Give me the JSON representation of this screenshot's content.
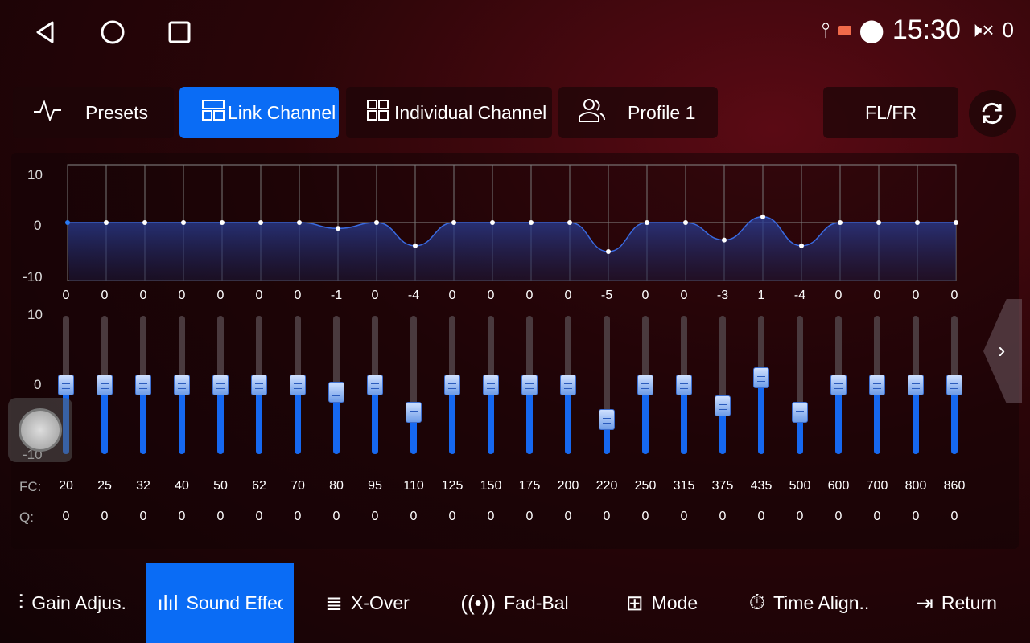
{
  "nav": {
    "back_icon": "triangle-back",
    "home_icon": "circle-home",
    "recents_icon": "square-recents"
  },
  "status": {
    "time": "15:30",
    "volume": "0",
    "icons": [
      "usb-icon",
      "cast-icon",
      "location-icon",
      "volume-mute-icon"
    ],
    "cast_color": "#f06a4a"
  },
  "tabs": [
    {
      "label": "Presets",
      "icon": "pulse-icon"
    },
    {
      "label": "Link Channel",
      "icon": "link-channel-icon",
      "active": true
    },
    {
      "label": "Individual Channel",
      "icon": "grid-icon"
    },
    {
      "label": "Profile 1",
      "icon": "users-icon"
    }
  ],
  "channel": "FL/FR",
  "graph": {
    "y_labels": [
      "10",
      "0",
      "-10"
    ]
  },
  "slider_labels": [
    "10",
    "0",
    "-10"
  ],
  "bands": {
    "gains": [
      0,
      0,
      0,
      0,
      0,
      0,
      0,
      -1,
      0,
      -4,
      0,
      0,
      0,
      0,
      -5,
      0,
      0,
      -3,
      1,
      -4,
      0,
      0,
      0,
      0
    ],
    "fc": [
      "20",
      "25",
      "32",
      "40",
      "50",
      "62",
      "70",
      "80",
      "95",
      "110",
      "125",
      "150",
      "175",
      "200",
      "220",
      "250",
      "315",
      "375",
      "435",
      "500",
      "600",
      "700",
      "800",
      "860"
    ],
    "q": [
      "0",
      "0",
      "0",
      "0",
      "0",
      "0",
      "0",
      "0",
      "0",
      "0",
      "0",
      "0",
      "0",
      "0",
      "0",
      "0",
      "0",
      "0",
      "0",
      "0",
      "0",
      "0",
      "0",
      "0"
    ]
  },
  "fc_label": "FC:",
  "q_label": "Q:",
  "bottom": [
    {
      "label": "Gain Adjus..",
      "icon": "sliders-icon"
    },
    {
      "label": "Sound Effec",
      "icon": "waveform-icon",
      "active": true
    },
    {
      "label": "X-Over",
      "icon": "equalizer-bars-icon"
    },
    {
      "label": "Fad-Bal",
      "icon": "speaker-wave-icon"
    },
    {
      "label": "Mode",
      "icon": "mode-icon"
    },
    {
      "label": "Time Align..",
      "icon": "stopwatch-icon"
    },
    {
      "label": "Return",
      "icon": "return-icon"
    }
  ],
  "accent": "#0a6cf5"
}
